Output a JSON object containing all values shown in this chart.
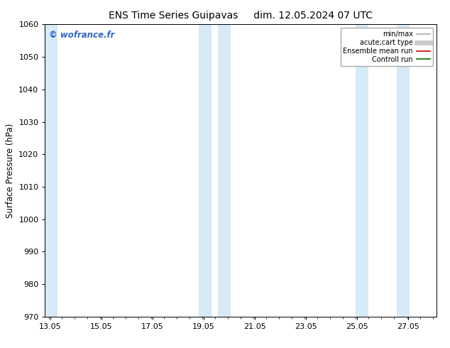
{
  "title_left": "ENS Time Series Guipavas",
  "title_right": "dim. 12.05.2024 07 UTC",
  "ylabel": "Surface Pressure (hPa)",
  "ylim": [
    970,
    1060
  ],
  "yticks": [
    970,
    980,
    990,
    1000,
    1010,
    1020,
    1030,
    1040,
    1050,
    1060
  ],
  "xlim_start": 12.85,
  "xlim_end": 28.15,
  "xtick_positions": [
    13.05,
    15.05,
    17.05,
    19.05,
    21.05,
    23.05,
    25.05,
    27.05
  ],
  "xtick_labels": [
    "13.05",
    "15.05",
    "17.05",
    "19.05",
    "21.05",
    "23.05",
    "25.05",
    "27.05"
  ],
  "background_color": "#ffffff",
  "plot_bg_color": "#ffffff",
  "watermark": "© wofrance.fr",
  "watermark_color": "#3366cc",
  "shaded_bands": [
    {
      "xmin": 12.85,
      "xmax": 13.35,
      "color": "#d6eaf8"
    },
    {
      "xmin": 18.85,
      "xmax": 19.35,
      "color": "#d6eaf8"
    },
    {
      "xmin": 19.6,
      "xmax": 20.1,
      "color": "#d6eaf8"
    },
    {
      "xmin": 25.0,
      "xmax": 25.5,
      "color": "#d6eaf8"
    },
    {
      "xmin": 26.6,
      "xmax": 27.1,
      "color": "#d6eaf8"
    }
  ],
  "legend_entries": [
    {
      "label": "min/max",
      "color": "#aaaaaa",
      "linewidth": 1.2
    },
    {
      "label": "acute;cart type",
      "color": "#cccccc",
      "linewidth": 5.0
    },
    {
      "label": "Ensemble mean run",
      "color": "#cc0000",
      "linewidth": 1.2
    },
    {
      "label": "Controll run",
      "color": "#007700",
      "linewidth": 1.2
    }
  ],
  "title_fontsize": 10,
  "legend_fontsize": 7,
  "tick_fontsize": 8,
  "ylabel_fontsize": 8.5
}
